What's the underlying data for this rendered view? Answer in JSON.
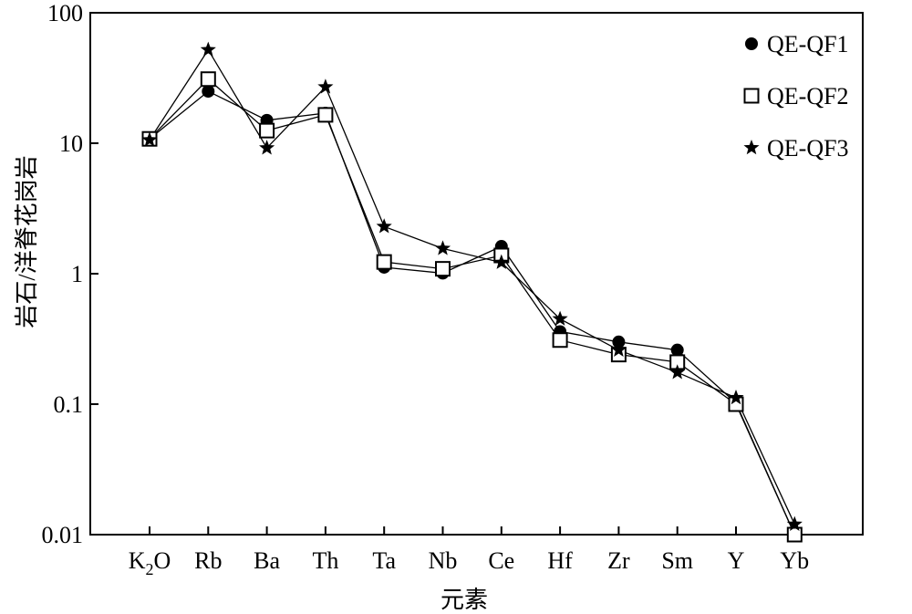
{
  "chart_data": {
    "type": "line",
    "xlabel": "元素",
    "ylabel": "岩石/洋脊花岗岩",
    "yscale": "log",
    "ylim": [
      0.01,
      100
    ],
    "yticks": [
      "0.01",
      "0.1",
      "1",
      "10",
      "100"
    ],
    "categories": [
      "K2O",
      "Rb",
      "Ba",
      "Th",
      "Ta",
      "Nb",
      "Ce",
      "Hf",
      "Zr",
      "Sm",
      "Y",
      "Yb"
    ],
    "category_labels": [
      {
        "base": "K",
        "sub": "2",
        "tail": "O"
      },
      {
        "base": "Rb",
        "sub": "",
        "tail": ""
      },
      {
        "base": "Ba",
        "sub": "",
        "tail": ""
      },
      {
        "base": "Th",
        "sub": "",
        "tail": ""
      },
      {
        "base": "Ta",
        "sub": "",
        "tail": ""
      },
      {
        "base": "Nb",
        "sub": "",
        "tail": ""
      },
      {
        "base": "Ce",
        "sub": "",
        "tail": ""
      },
      {
        "base": "Hf",
        "sub": "",
        "tail": ""
      },
      {
        "base": "Zr",
        "sub": "",
        "tail": ""
      },
      {
        "base": "Sm",
        "sub": "",
        "tail": ""
      },
      {
        "base": "Y",
        "sub": "",
        "tail": ""
      },
      {
        "base": "Yb",
        "sub": "",
        "tail": ""
      }
    ],
    "legend_position": "top-right",
    "grid": false,
    "series": [
      {
        "name": "QE-QF1",
        "marker": "filled-circle",
        "values": [
          10.8,
          25,
          15,
          17,
          1.12,
          1.01,
          1.62,
          0.36,
          0.3,
          0.26,
          0.102,
          0.01
        ]
      },
      {
        "name": "QE-QF2",
        "marker": "open-square",
        "values": [
          10.8,
          31,
          12.5,
          16.5,
          1.23,
          1.09,
          1.38,
          0.31,
          0.24,
          0.21,
          0.1,
          0.01
        ]
      },
      {
        "name": "QE-QF3",
        "marker": "star",
        "values": [
          10.6,
          52,
          9.2,
          27,
          2.3,
          1.56,
          1.22,
          0.45,
          0.26,
          0.175,
          0.112,
          0.012
        ]
      }
    ]
  },
  "legend": {
    "items": [
      "QE-QF1",
      "QE-QF2",
      "QE-QF3"
    ]
  }
}
